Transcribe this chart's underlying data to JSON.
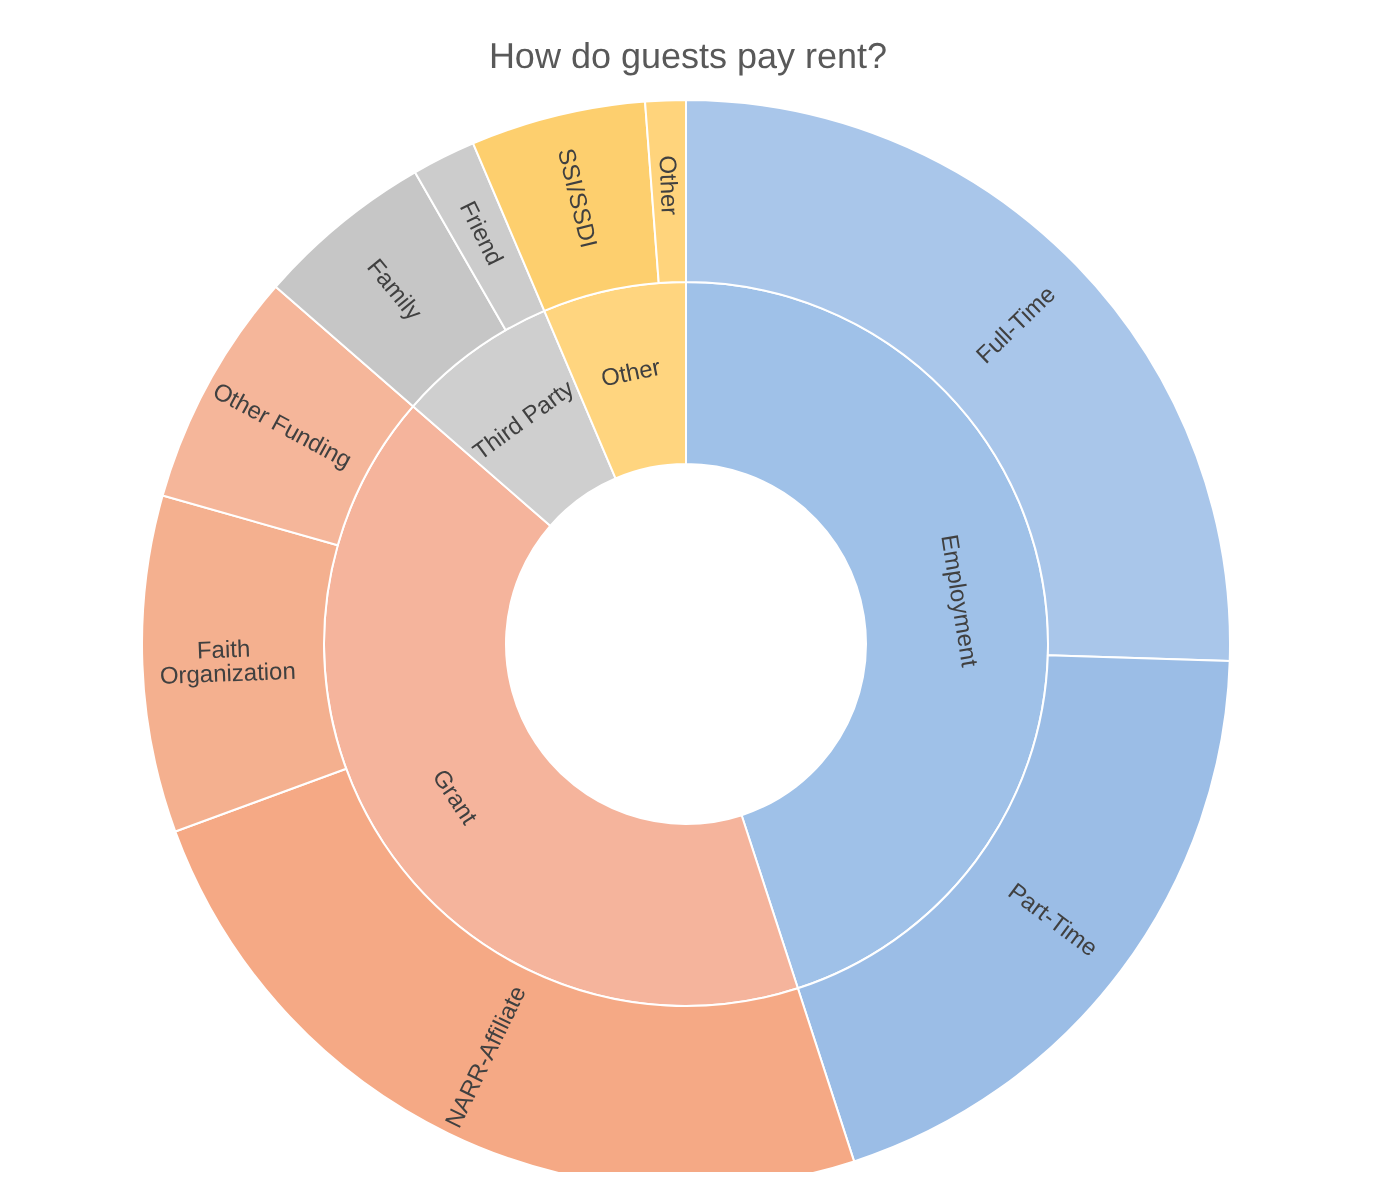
{
  "chart_data": [
    {
      "type": "donut",
      "title": "How do guests pay rent?",
      "categories": [
        "Employment",
        "Grant",
        "Third Party",
        "Other"
      ],
      "values": [
        45,
        41.4,
        7.2,
        6.4
      ],
      "colors": [
        "#9fc1e8",
        "#f5b49c",
        "#cfcfcf",
        "#ffd57f"
      ]
    },
    {
      "type": "donut",
      "categories": [
        "Full-Time",
        "Part-Time",
        "NARR-Affiliate",
        "Faith Organization",
        "Other Funding",
        "Family",
        "Friend",
        "SSI/SSDI",
        "Other"
      ],
      "values": [
        25.5,
        19.5,
        24.4,
        10,
        7,
        5.3,
        1.9,
        5.2,
        1.2
      ],
      "colors": [
        "#a9c6ea",
        "#9bbde6",
        "#f5a985",
        "#f4b08f",
        "#f5b69a",
        "#c6c6c6",
        "#cccccc",
        "#fdcf6e",
        "#ffd47c"
      ]
    }
  ]
}
